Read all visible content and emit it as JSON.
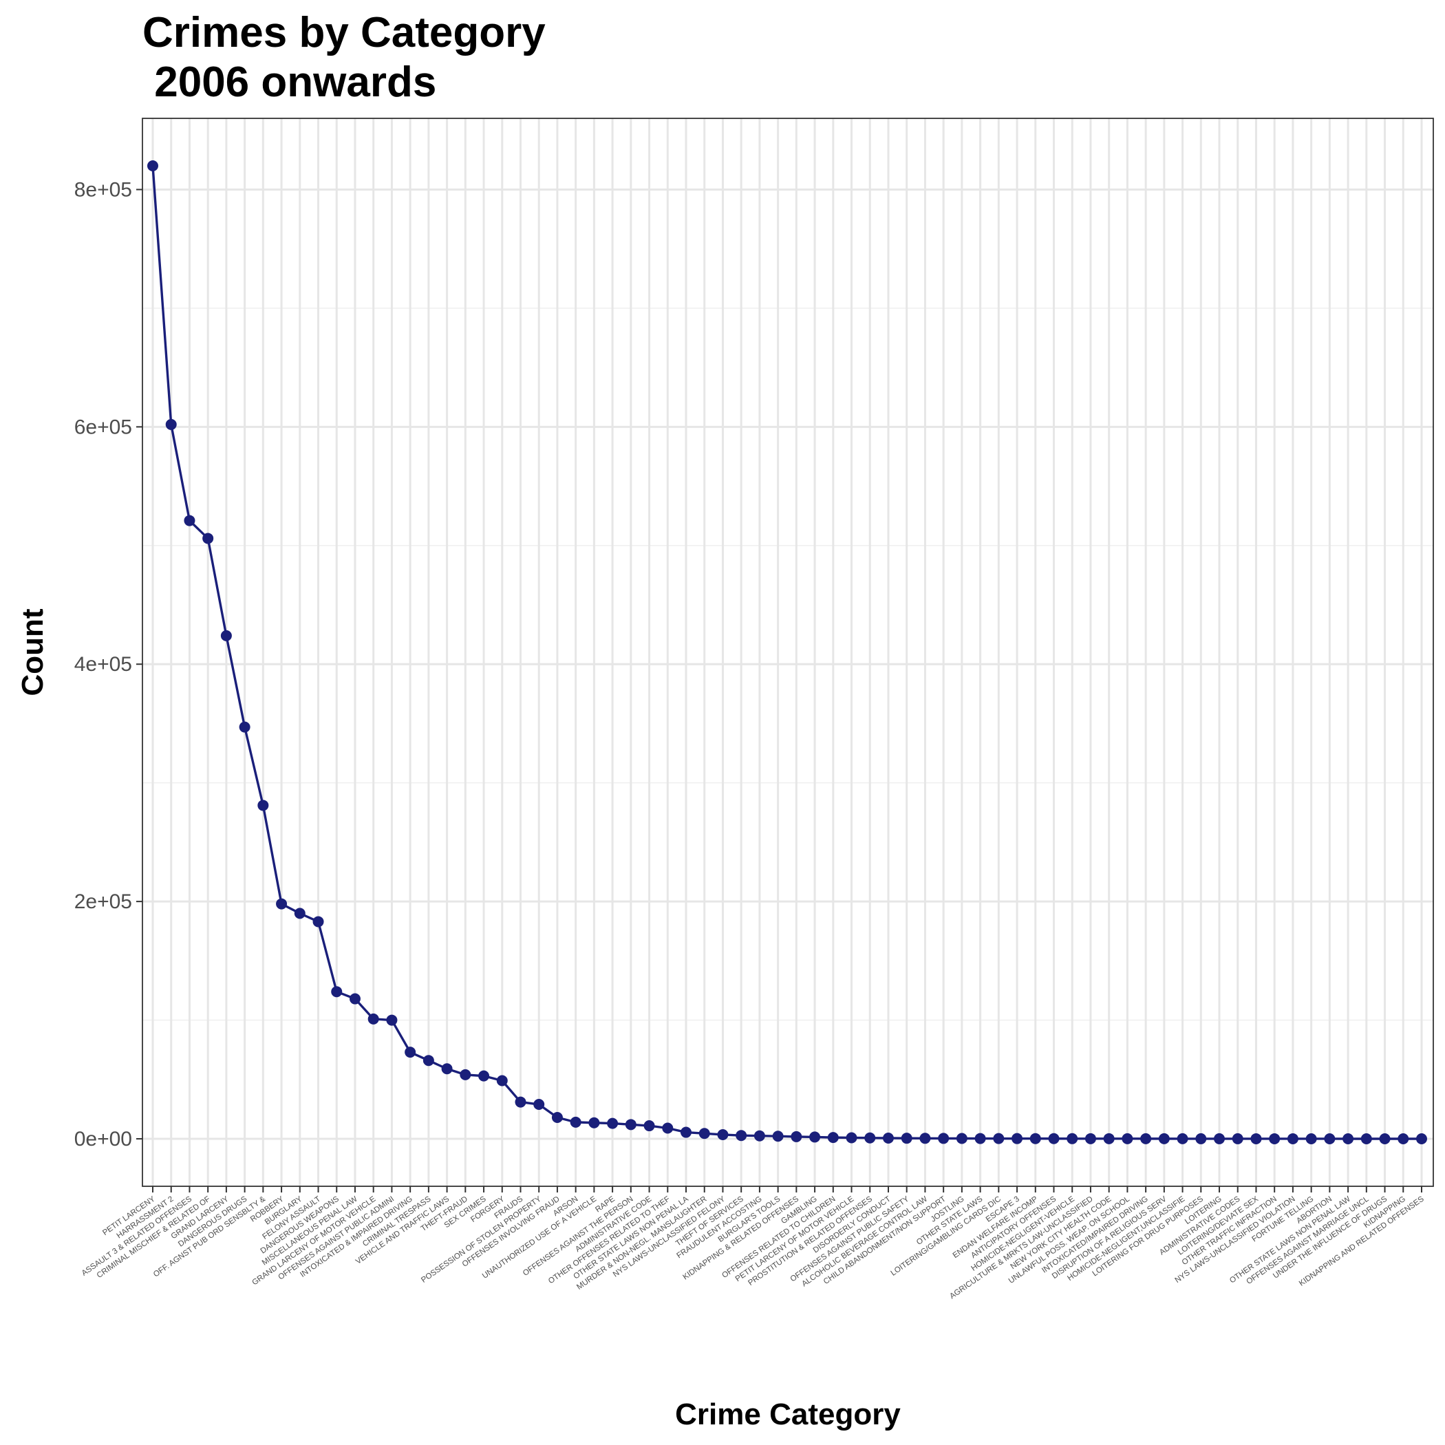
{
  "chart_data": {
    "type": "line",
    "title_line1": "Crimes by Category",
    "title_line2": " 2006 onwards",
    "xlabel": "Crime Category",
    "ylabel": "Count",
    "ylim": [
      -40000,
      860000
    ],
    "yticks": [
      0,
      200000,
      400000,
      600000,
      800000
    ],
    "ytick_labels": [
      "0e+00",
      "2e+05",
      "4e+05",
      "6e+05",
      "8e+05"
    ],
    "grid": true,
    "line_color": "#1a1f7a",
    "categories": [
      "PETIT LARCENY",
      "HARRASSMENT 2",
      "ASSAULT 3 & RELATED OFFENSES",
      "CRIMINAL MISCHIEF & RELATED OF",
      "GRAND LARCENY",
      "DANGEROUS DRUGS",
      "OFF. AGNST PUB ORD SENSBLTY &",
      "ROBBERY",
      "BURGLARY",
      "FELONY ASSAULT",
      "DANGEROUS WEAPONS",
      "MISCELLANEOUS PENAL LAW",
      "GRAND LARCENY OF MOTOR VEHICLE",
      "OFFENSES AGAINST PUBLIC ADMINI",
      "INTOXICATED & IMPAIRED DRIVING",
      "CRIMINAL TRESPASS",
      "VEHICLE AND TRAFFIC LAWS",
      "THEFT-FRAUD",
      "SEX CRIMES",
      "FORGERY",
      "FRAUDS",
      "POSSESSION OF STOLEN PROPERTY",
      "OFFENSES INVOLVING FRAUD",
      "ARSON",
      "UNAUTHORIZED USE OF A VEHICLE",
      "RAPE",
      "OFFENSES AGAINST THE PERSON",
      "ADMINISTRATIVE CODE",
      "OTHER OFFENSES RELATED TO THEF",
      "OTHER STATE LAWS NON PENAL LA",
      "MURDER & NON-NEGL. MANSLAUGHTER",
      "NYS LAWS-UNCLASSIFIED FELONY",
      "THEFT OF SERVICES",
      "FRAUDULENT ACCOSTING",
      "BURGLAR'S TOOLS",
      "KIDNAPPING & RELATED OFFENSES",
      "GAMBLING",
      "OFFENSES RELATED TO CHILDREN",
      "PETIT LARCENY OF MOTOR VEHICLE",
      "PROSTITUTION & RELATED OFFENSES",
      "DISORDERLY CONDUCT",
      "OFFENSES AGAINST PUBLIC SAFETY",
      "ALCOHOLIC BEVERAGE CONTROL LAW",
      "CHILD ABANDONMENT/NON SUPPORT",
      "JOSTLING",
      "OTHER STATE LAWS",
      "LOITERING/GAMBLING CARDS DIC",
      "ESCAPE 3",
      "ENDAN WELFARE INCOMP",
      "ANTICIPATORY OFFENSES",
      "HOMICIDE-NEGLIGENT-VEHICLE",
      "AGRICULTURE & MRKTS LAW-UNCLASSIFIED",
      "NEW YORK CITY HEALTH CODE",
      "UNLAWFUL POSS. WEAP. ON SCHOOL",
      "INTOXICATED/IMPAIRED DRIVING",
      "DISRUPTION OF A RELIGIOUS SERV",
      "HOMICIDE-NEGLIGENT,UNCLASSIFIE",
      "LOITERING FOR DRUG PURPOSES",
      "LOITERING",
      "ADMINISTRATIVE CODES",
      "LOITERING/DEVIATE SEX",
      "OTHER TRAFFIC INFRACTION",
      "NYS LAWS-UNCLASSIFIED VIOLATION",
      "FORTUNE TELLING",
      "ABORTION",
      "OTHER STATE LAWS NON PENAL LAW",
      "OFFENSES AGAINST MARRIAGE UNCL",
      "UNDER THE INFLUENCE OF DRUGS",
      "KIDNAPPING",
      "KIDNAPPING AND RELATED OFFENSES"
    ],
    "values": [
      820000,
      602000,
      521000,
      506000,
      424000,
      347000,
      281000,
      198000,
      190000,
      183000,
      124000,
      118000,
      101000,
      100000,
      73000,
      66000,
      59000,
      54000,
      53000,
      49000,
      31000,
      29000,
      18000,
      14000,
      13500,
      13000,
      12000,
      11000,
      9000,
      5500,
      4500,
      3500,
      2800,
      2500,
      2200,
      1800,
      1500,
      1100,
      900,
      750,
      600,
      500,
      420,
      350,
      300,
      250,
      220,
      200,
      180,
      160,
      140,
      120,
      110,
      100,
      90,
      80,
      70,
      60,
      55,
      50,
      45,
      40,
      35,
      30,
      25,
      20,
      15,
      12,
      10,
      5
    ]
  }
}
